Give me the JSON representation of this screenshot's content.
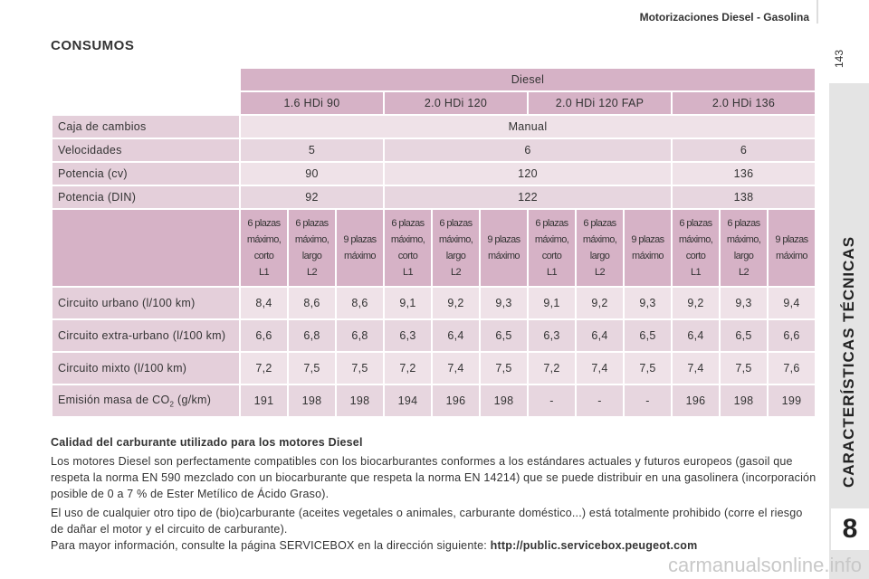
{
  "header": {
    "section": "Motorizaciones Diesel - Gasolina",
    "page_number": "143",
    "side_tab": "CARACTERÍSTICAS TÉCNICAS",
    "chapter": "8"
  },
  "title": "CONSUMOS",
  "table": {
    "fuel": "Diesel",
    "engines": [
      "1.6 HDi 90",
      "2.0 HDi 120",
      "2.0 HDi 120 FAP",
      "2.0 HDi 136"
    ],
    "spec_rows": [
      {
        "label": "Caja de cambios",
        "cells": [
          "Manual"
        ]
      },
      {
        "label": "Velocidades",
        "cells": [
          "5",
          "6",
          "6"
        ]
      },
      {
        "label": "Potencia (cv)",
        "cells": [
          "90",
          "120",
          "136"
        ]
      },
      {
        "label": "Potencia (DIN)",
        "cells": [
          "92",
          "122",
          "138"
        ]
      }
    ],
    "variants": [
      [
        "6 plazas",
        "máximo,",
        "corto",
        "L1"
      ],
      [
        "6 plazas",
        "máximo,",
        "largo",
        "L2"
      ],
      [
        "9 plazas",
        "máximo"
      ],
      [
        "6 plazas",
        "máximo,",
        "corto",
        "L1"
      ],
      [
        "6 plazas",
        "máximo,",
        "largo",
        "L2"
      ],
      [
        "9 plazas",
        "máximo"
      ],
      [
        "6 plazas",
        "máximo,",
        "corto",
        "L1"
      ],
      [
        "6 plazas",
        "máximo,",
        "largo",
        "L2"
      ],
      [
        "9 plazas",
        "máximo"
      ],
      [
        "6 plazas",
        "máximo,",
        "corto",
        "L1"
      ],
      [
        "6 plazas",
        "máximo,",
        "largo",
        "L2"
      ],
      [
        "9 plazas",
        "máximo"
      ]
    ],
    "consumption_rows": [
      {
        "label": "Circuito urbano (l/100 km)",
        "values": [
          "8,4",
          "8,6",
          "8,6",
          "9,1",
          "9,2",
          "9,3",
          "9,1",
          "9,2",
          "9,3",
          "9,2",
          "9,3",
          "9,4"
        ]
      },
      {
        "label": "Circuito extra-urbano (l/100 km)",
        "values": [
          "6,6",
          "6,8",
          "6,8",
          "6,3",
          "6,4",
          "6,5",
          "6,3",
          "6,4",
          "6,5",
          "6,4",
          "6,5",
          "6,6"
        ]
      },
      {
        "label": "Circuito mixto (l/100 km)",
        "values": [
          "7,2",
          "7,5",
          "7,5",
          "7,2",
          "7,4",
          "7,5",
          "7,2",
          "7,4",
          "7,5",
          "7,4",
          "7,5",
          "7,6"
        ]
      },
      {
        "label": {
          "text": "Emisión masa de CO",
          "sub": "2",
          "after": " (g/km)"
        },
        "values": [
          "191",
          "198",
          "198",
          "194",
          "196",
          "198",
          "-",
          "-",
          "-",
          "196",
          "198",
          "199"
        ]
      }
    ]
  },
  "notes": {
    "heading": "Calidad del carburante utilizado para los motores Diesel",
    "paragraphs": [
      "Los motores Diesel son perfectamente compatibles con los biocarburantes conformes a los estándares actuales y futuros europeos (gasoil que respeta la norma EN 590 mezclado con un biocarburante que respeta la norma EN 14214) que se puede distribuir en una gasolinera (incorporación posible de 0 a 7 % de Ester Metílico de Ácido Graso).",
      "El uso de cualquier otro tipo de (bio)carburante (aceites vegetales o animales, carburante doméstico...) está totalmente prohibido (corre el riesgo de dañar el motor y el circuito de carburante)."
    ],
    "more_info": "Para mayor información, consulte la página SERVICEBOX en la dirección siguiente: ",
    "url": "http://public.servicebox.peugeot.com"
  },
  "watermark": "carmanualsonline.info"
}
